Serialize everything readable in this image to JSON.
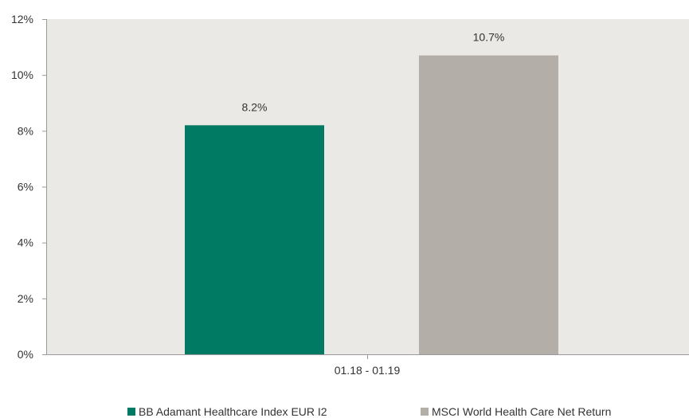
{
  "chart_data": {
    "type": "bar",
    "categories": [
      "01.18 - 01.19"
    ],
    "series": [
      {
        "name": "BB Adamant Healthcare Index EUR I2",
        "values": [
          8.2
        ],
        "label": "8.2%",
        "color": "#007a62"
      },
      {
        "name": "MSCI World Health Care Net Return",
        "values": [
          10.7
        ],
        "label": "10.7%",
        "color": "#b4aea9"
      }
    ],
    "yticks": [
      "0%",
      "2%",
      "4%",
      "6%",
      "8%",
      "10%",
      "12%"
    ],
    "ylim": [
      0,
      12
    ],
    "xlabel": "",
    "ylabel": "",
    "grid": false,
    "legend_position": "bottom",
    "plot_background": "#ebe9e5"
  }
}
